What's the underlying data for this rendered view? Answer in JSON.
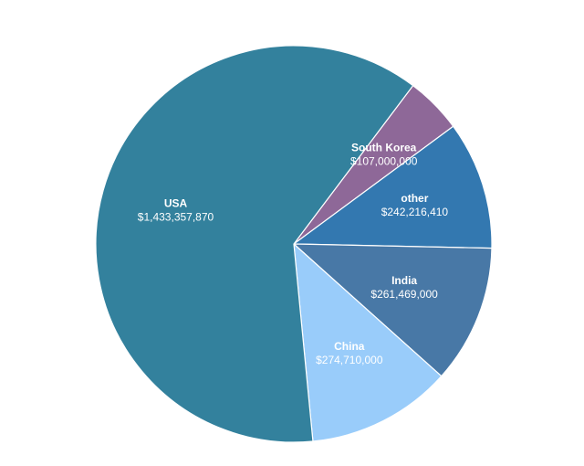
{
  "chart_data": {
    "type": "pie",
    "title": "",
    "start_angle_deg": 37,
    "slices": [
      {
        "label": "South Korea",
        "value": 107000000,
        "value_text": "$107,000,000",
        "color": "#8e6898"
      },
      {
        "label": "other",
        "value": 242216410,
        "value_text": "$242,216,410",
        "color": "#3378b0"
      },
      {
        "label": "India",
        "value": 261469000,
        "value_text": "$261,469,000",
        "color": "#4878a6"
      },
      {
        "label": "China",
        "value": 274710000,
        "value_text": "$274,710,000",
        "color": "#99ccfa"
      },
      {
        "label": "USA",
        "value": 1433357870,
        "value_text": "$1,433,357,870",
        "color": "#33819d"
      }
    ]
  }
}
